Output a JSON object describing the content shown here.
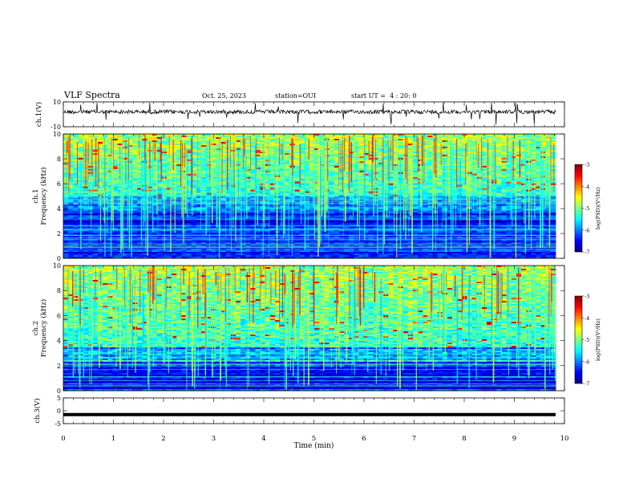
{
  "header": {
    "title": "VLF Spectra",
    "date": "Oct. 25, 2023",
    "station": "station=OUI",
    "start": "start UT =  4 : 20: 0"
  },
  "colors": {
    "colormap": [
      "#00007f",
      "#0000ff",
      "#0080ff",
      "#00ffff",
      "#80ff80",
      "#ffff00",
      "#ff8000",
      "#ff0000",
      "#7f0000"
    ],
    "trace": "#000000"
  },
  "chart_data": [
    {
      "id": "ch1-waveform",
      "type": "line",
      "ylabel": "ch.1(V)",
      "ylim": [
        -10,
        10
      ],
      "yticks": [
        "10",
        "-10"
      ],
      "xlim": [
        0,
        10
      ],
      "description_level": 2,
      "series": [
        {
          "values_note": "noisy broadband trace around +2 V with spikes to about ±10 V"
        }
      ]
    },
    {
      "id": "ch1-spectrogram",
      "type": "heatmap",
      "ylabel": "ch.1\nFrequency (kHz)",
      "ylabel_lines": [
        "ch.1",
        "Frequency (kHz)"
      ],
      "ylim": [
        0,
        10
      ],
      "yticks": [
        "0",
        "2",
        "4",
        "6",
        "8",
        "10"
      ],
      "xlim": [
        0,
        10
      ],
      "colorbar": {
        "label": "log(PSD)(V²/Hz)",
        "range": [
          -7,
          -3
        ],
        "ticks": [
          "-3",
          "-4",
          "-5",
          "-6",
          "-7"
        ]
      },
      "cutoff_khz": 5.0
    },
    {
      "id": "ch2-spectrogram",
      "type": "heatmap",
      "ylabel_lines": [
        "ch.2",
        "Frequency (kHz)"
      ],
      "ylim": [
        0,
        10
      ],
      "yticks": [
        "0",
        "2",
        "4",
        "6",
        "8",
        "10"
      ],
      "xlim": [
        0,
        10
      ],
      "colorbar": {
        "label": "log(PSD)(V²/Hz)",
        "range": [
          -7,
          -3
        ],
        "ticks": [
          "-3",
          "-4",
          "-5",
          "-6",
          "-7"
        ]
      },
      "cutoff_khz": 3.5
    },
    {
      "id": "ch3-waveform",
      "type": "line",
      "ylabel": "ch.3(V)",
      "ylim": [
        -5,
        5
      ],
      "yticks": [
        "5",
        "0",
        "-5"
      ],
      "xlim": [
        0,
        10
      ],
      "series": [
        {
          "constant": -1.5
        }
      ]
    }
  ],
  "xaxis": {
    "label": "Time (min)",
    "range": [
      0,
      10
    ],
    "ticks": [
      "0",
      "1",
      "2",
      "3",
      "4",
      "5",
      "6",
      "7",
      "8",
      "9",
      "10"
    ]
  }
}
